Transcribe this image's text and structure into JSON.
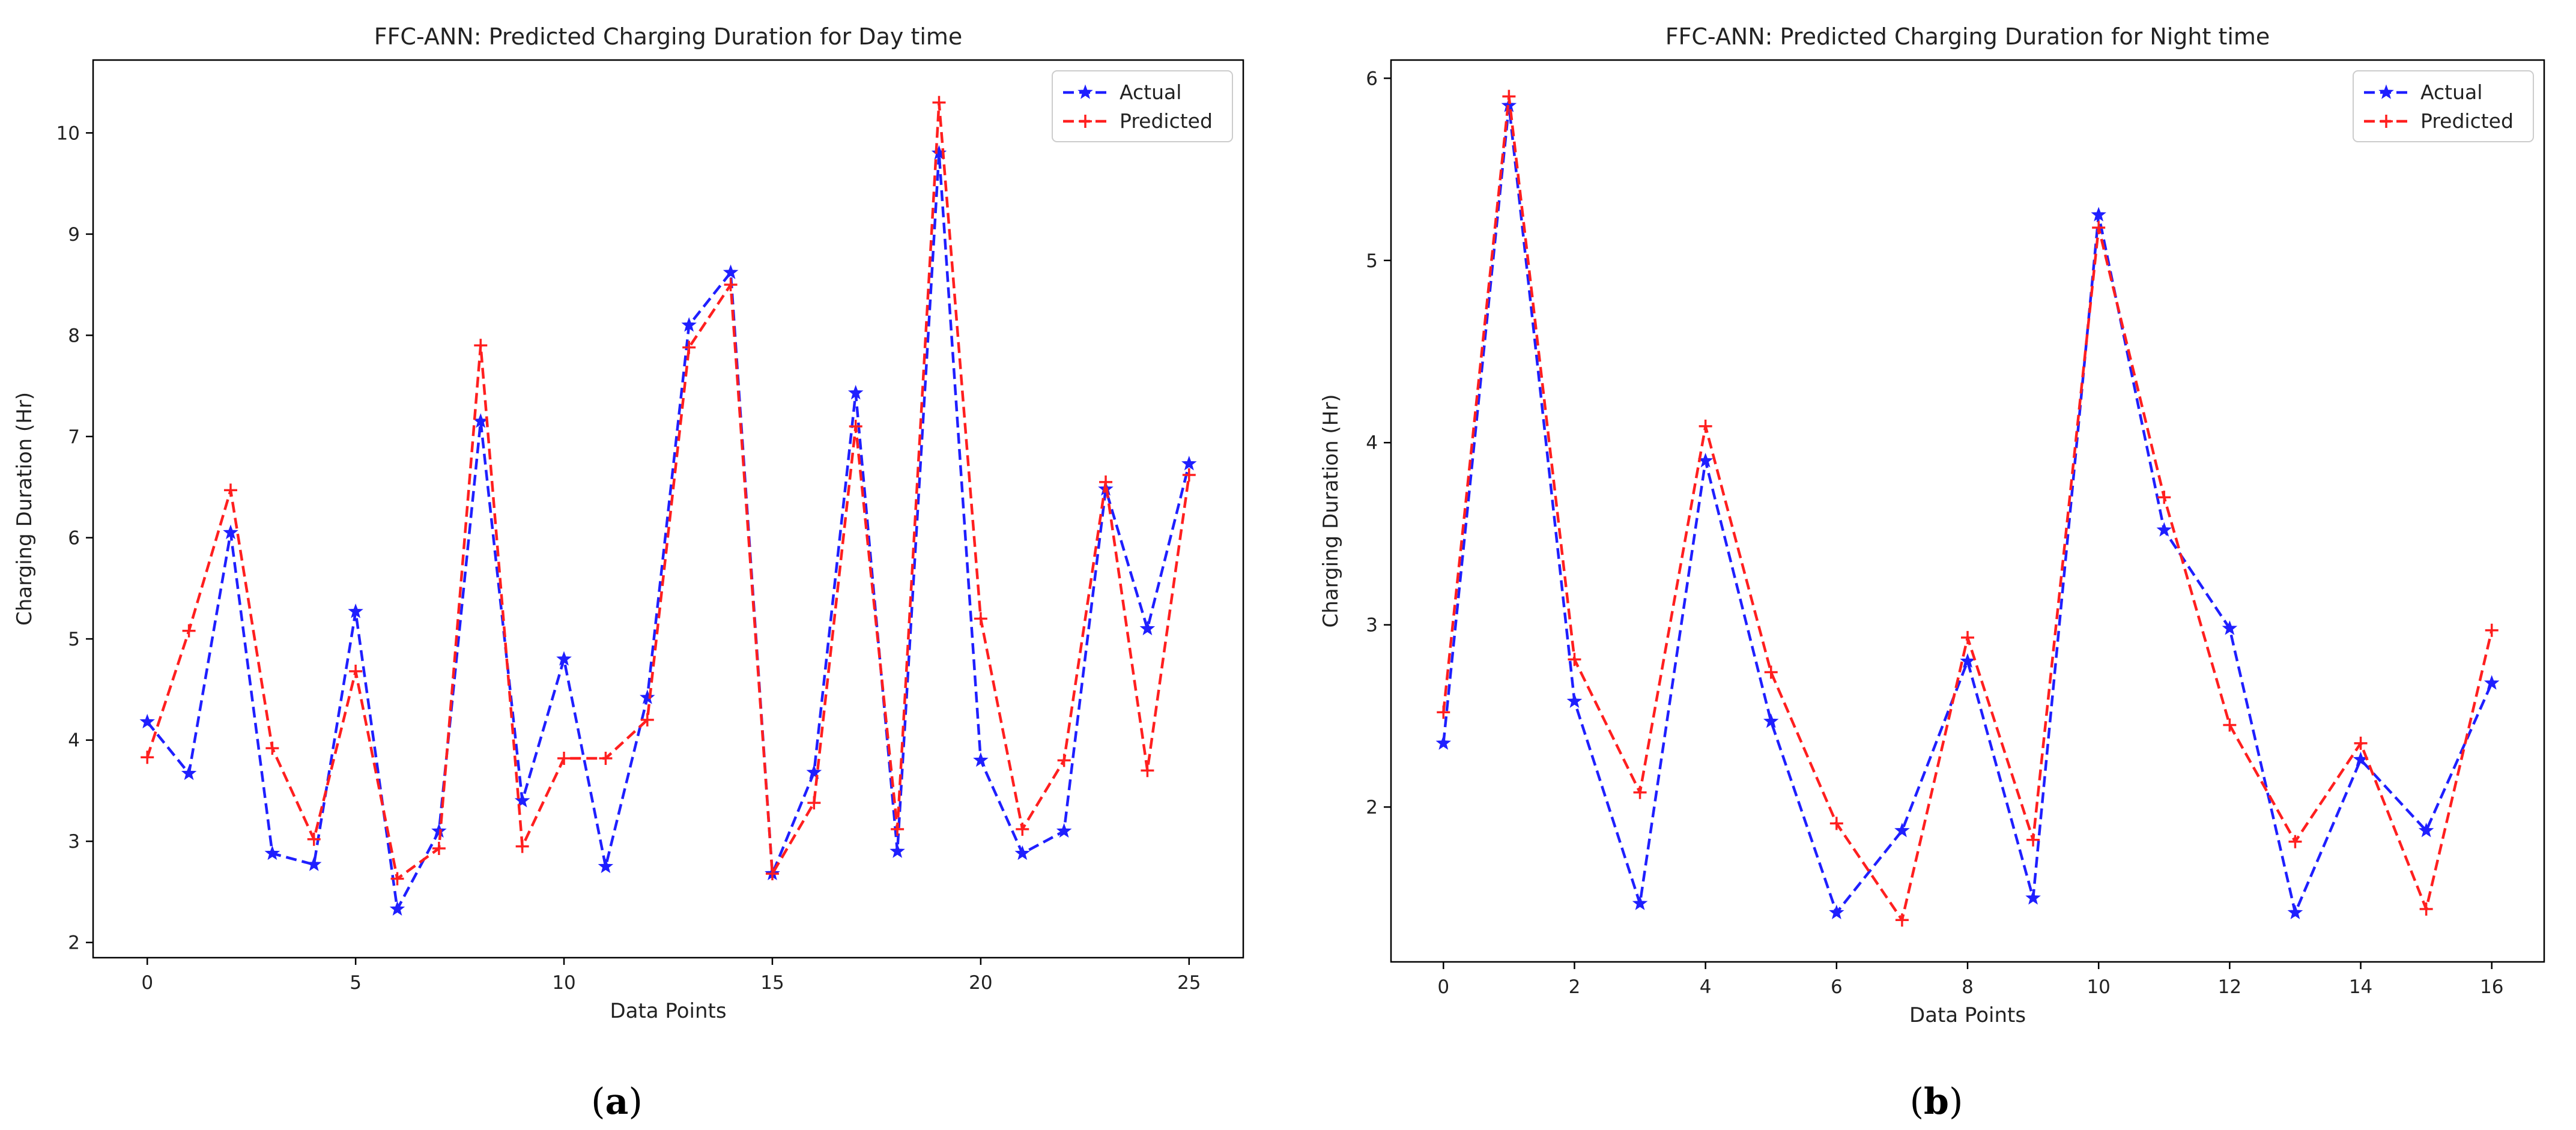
{
  "chart_data": [
    {
      "type": "line",
      "title": "FFC-ANN: Predicted Charging Duration for Day time",
      "xlabel": "Data Points",
      "ylabel": "Charging Duration (Hr)",
      "xlim": [
        -1.3,
        26.3
      ],
      "ylim": [
        1.85,
        10.72
      ],
      "xticks": [
        0,
        5,
        10,
        15,
        20,
        25
      ],
      "yticks": [
        2,
        3,
        4,
        5,
        6,
        7,
        8,
        9,
        10
      ],
      "grid": false,
      "legend_position": "top-right",
      "panel_label": "a",
      "x": [
        0,
        1,
        2,
        3,
        4,
        5,
        6,
        7,
        8,
        9,
        10,
        11,
        12,
        13,
        14,
        15,
        16,
        17,
        18,
        19,
        20,
        21,
        22,
        23,
        24,
        25
      ],
      "series": [
        {
          "name": "Actual",
          "color": "#1f1fff",
          "marker": "star",
          "values": [
            4.18,
            3.67,
            6.05,
            2.88,
            2.77,
            5.27,
            2.33,
            3.1,
            7.15,
            3.4,
            4.8,
            2.75,
            4.42,
            8.1,
            8.62,
            2.68,
            3.68,
            7.43,
            2.9,
            9.8,
            3.8,
            2.88,
            3.1,
            6.48,
            5.1,
            6.73
          ]
        },
        {
          "name": "Predicted",
          "color": "#ff1f1f",
          "marker": "plus",
          "values": [
            3.83,
            5.08,
            6.47,
            3.92,
            3.02,
            4.68,
            2.63,
            2.93,
            7.9,
            2.95,
            3.82,
            3.82,
            4.2,
            7.88,
            8.5,
            2.68,
            3.38,
            7.1,
            3.12,
            10.3,
            5.2,
            3.12,
            3.8,
            6.55,
            3.7,
            6.62
          ]
        }
      ]
    },
    {
      "type": "line",
      "title": "FFC-ANN: Predicted Charging Duration for Night time",
      "xlabel": "Data Points",
      "ylabel": "Charging Duration (Hr)",
      "xlim": [
        -0.8,
        16.8
      ],
      "ylim": [
        1.15,
        6.1
      ],
      "xticks": [
        0,
        2,
        4,
        6,
        8,
        10,
        12,
        14,
        16
      ],
      "yticks": [
        2,
        3,
        4,
        5,
        6
      ],
      "grid": false,
      "legend_position": "top-right",
      "panel_label": "b",
      "x": [
        0,
        1,
        2,
        3,
        4,
        5,
        6,
        7,
        8,
        9,
        10,
        11,
        12,
        13,
        14,
        15,
        16
      ],
      "series": [
        {
          "name": "Actual",
          "color": "#1f1fff",
          "marker": "star",
          "values": [
            2.35,
            5.85,
            2.58,
            1.47,
            3.9,
            2.47,
            1.42,
            1.87,
            2.8,
            1.5,
            5.25,
            3.52,
            2.98,
            1.42,
            2.26,
            1.87,
            2.68
          ]
        },
        {
          "name": "Predicted",
          "color": "#ff1f1f",
          "marker": "plus",
          "values": [
            2.52,
            5.9,
            2.81,
            2.08,
            4.09,
            2.74,
            1.91,
            1.38,
            2.93,
            1.82,
            5.18,
            3.7,
            2.45,
            1.81,
            2.35,
            1.44,
            2.97
          ]
        }
      ]
    }
  ]
}
